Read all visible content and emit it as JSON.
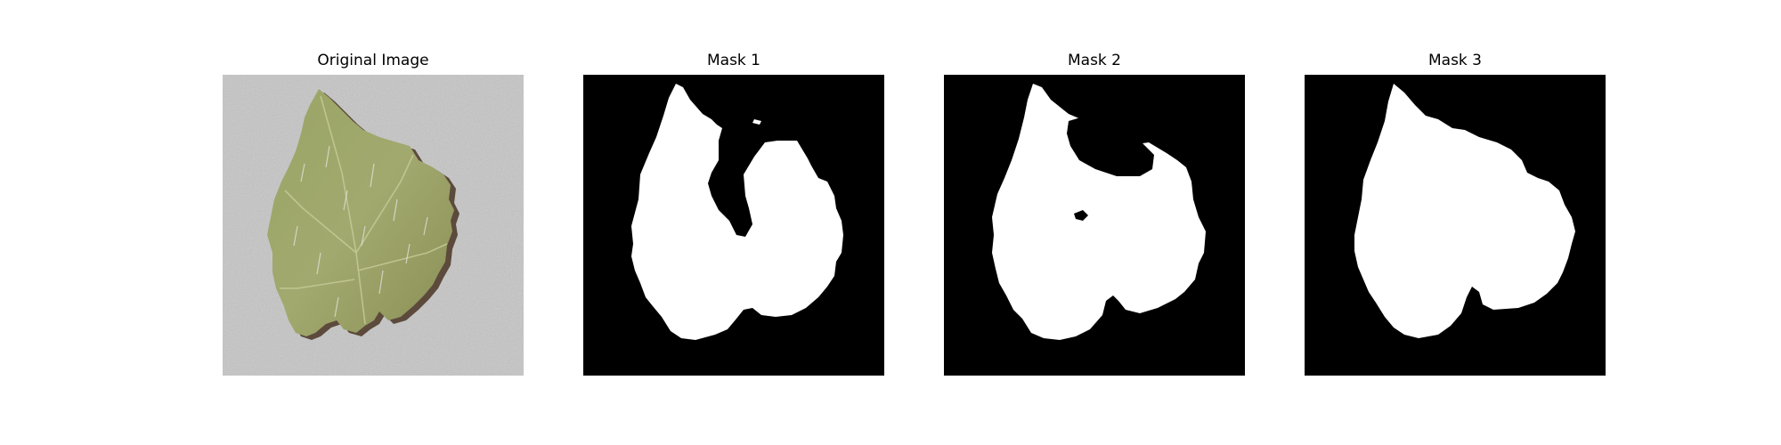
{
  "figure": {
    "panels": [
      {
        "title": "Original Image"
      },
      {
        "title": "Mask 1"
      },
      {
        "title": "Mask 2"
      },
      {
        "title": "Mask 3"
      }
    ]
  },
  "colors": {
    "mask_foreground": "#ffffff",
    "mask_background": "#000000",
    "photo_background": "#c4c4c4",
    "leaf": "#8f9a5e"
  }
}
